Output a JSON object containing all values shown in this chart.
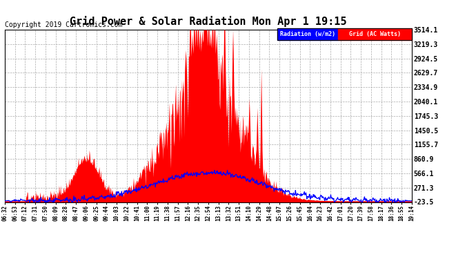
{
  "title": "Grid Power & Solar Radiation Mon Apr 1 19:15",
  "copyright": "Copyright 2019 Cartronics.com",
  "legend_radiation": "Radiation (w/m2)",
  "legend_grid": "Grid (AC Watts)",
  "yticks": [
    3514.1,
    3219.3,
    2924.5,
    2629.7,
    2334.9,
    2040.1,
    1745.3,
    1450.5,
    1155.7,
    860.9,
    566.1,
    271.3,
    -23.5
  ],
  "ymin": -23.5,
  "ymax": 3514.1,
  "background_color": "#ffffff",
  "plot_bg_color": "#ffffff",
  "grid_color": "#aaaaaa",
  "fill_color": "#ff0000",
  "radiation_color": "#0000ff",
  "title_fontsize": 11,
  "copyright_fontsize": 7,
  "xtick_labels": [
    "06:32",
    "06:53",
    "07:12",
    "07:31",
    "07:50",
    "08:09",
    "08:28",
    "08:47",
    "09:06",
    "09:25",
    "09:44",
    "10:03",
    "10:22",
    "10:41",
    "11:00",
    "11:19",
    "11:38",
    "11:57",
    "12:16",
    "12:35",
    "12:54",
    "13:13",
    "13:32",
    "13:51",
    "14:10",
    "14:29",
    "14:48",
    "15:07",
    "15:26",
    "15:45",
    "16:04",
    "16:23",
    "16:42",
    "17:01",
    "17:20",
    "17:39",
    "17:58",
    "18:17",
    "18:36",
    "18:55",
    "19:14"
  ]
}
